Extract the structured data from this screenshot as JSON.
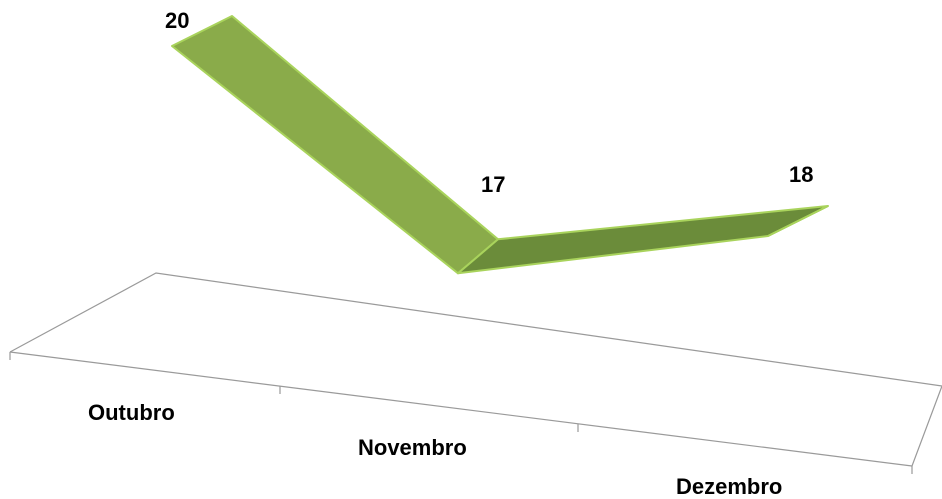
{
  "chart_data": {
    "type": "line",
    "variant": "3d-ribbon",
    "categories": [
      "Outubro",
      "Novembro",
      "Dezembro"
    ],
    "values": [
      20,
      17,
      18
    ],
    "data_labels": [
      "20",
      "17",
      "18"
    ],
    "colors": {
      "ribbon_front": "#6b8c3a",
      "ribbon_top": "#8aab4a",
      "ribbon_edge": "#a9d35c",
      "floor_line": "#9a9a9a"
    },
    "grid": false,
    "legend": "none"
  }
}
